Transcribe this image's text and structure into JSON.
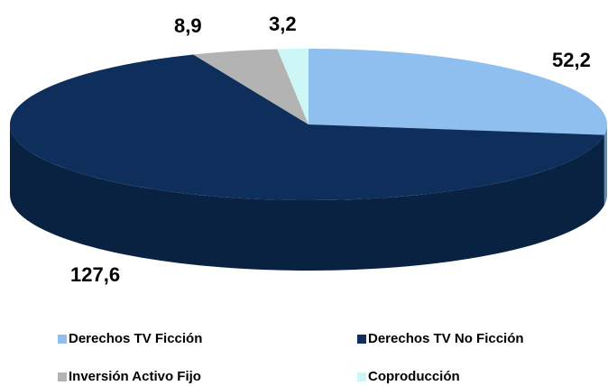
{
  "chart_data": {
    "type": "pie",
    "categories": [
      "Derechos TV Ficción",
      "Derechos TV No Ficción",
      "Inversión Activo Fijo",
      "Coproducción"
    ],
    "values": [
      52.2,
      127.6,
      8.9,
      3.2
    ],
    "value_labels": [
      "52,2",
      "127,6",
      "8,9",
      "3,2"
    ],
    "colors": [
      "#8fbfee",
      "#0e2f5c",
      "#b3b3b3",
      "#cdf7f7"
    ],
    "legend": "bottom"
  }
}
